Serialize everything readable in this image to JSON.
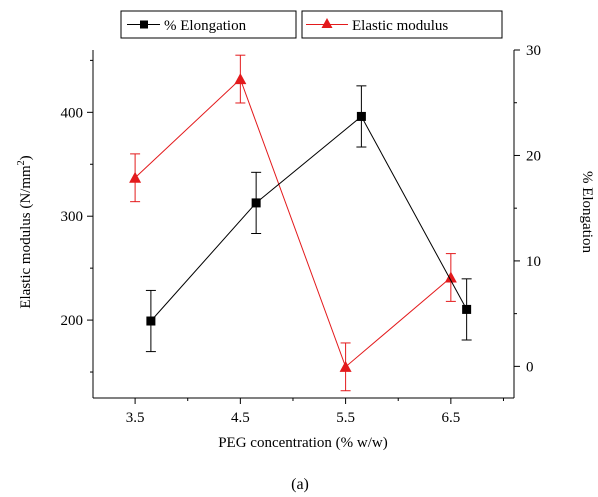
{
  "chart_data": {
    "type": "line",
    "caption": "(a)",
    "xlabel": "PEG concentration (% w/w)",
    "ylabel_left": "Elastic modulus (N/mm",
    "ylabel_left_sup": "2",
    "ylabel_left_close": ")",
    "ylabel_right": "% Elongation",
    "x_ticks": [
      "3.5",
      "4.5",
      "5.5",
      "6.5"
    ],
    "y_left_ticks": [
      "200",
      "300",
      "400"
    ],
    "y_right_ticks": [
      "0",
      "10",
      "20",
      "30"
    ],
    "ylim_left": [
      125,
      460
    ],
    "ylim_right": [
      -3,
      30
    ],
    "xlim": [
      3.1,
      7.1
    ],
    "series": [
      {
        "name": "% Elongation",
        "axis": "right",
        "color": "#000000",
        "marker": "square",
        "x": [
          3.65,
          4.65,
          5.65,
          6.65
        ],
        "y": [
          4.3,
          15.5,
          23.7,
          5.4
        ],
        "err": [
          2.9,
          2.9,
          2.9,
          2.9
        ]
      },
      {
        "name": "Elastic modulus",
        "axis": "left",
        "color": "#e31a1c",
        "marker": "triangle",
        "x": [
          3.5,
          4.5,
          5.5,
          6.5
        ],
        "y": [
          337,
          432,
          155,
          241
        ],
        "err": [
          23,
          23,
          23,
          23
        ]
      }
    ]
  }
}
